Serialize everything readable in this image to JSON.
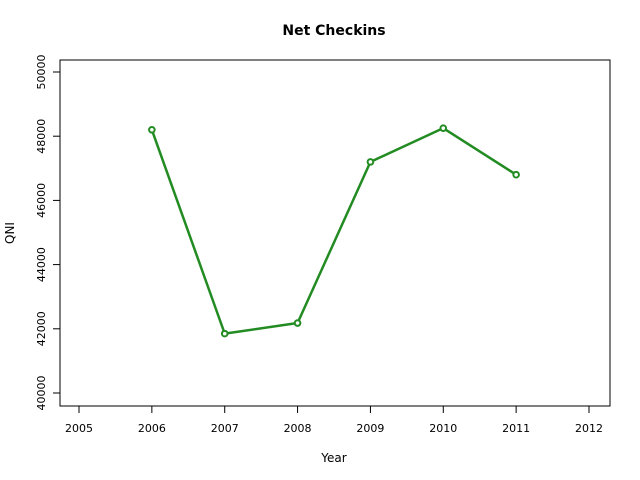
{
  "chart_data": {
    "type": "line",
    "title": "Net Checkins",
    "xlabel": "Year",
    "ylabel": "QNI",
    "xlim": [
      2005,
      2012
    ],
    "ylim": [
      40000,
      50000
    ],
    "x_ticks": [
      2005,
      2006,
      2007,
      2008,
      2009,
      2010,
      2011,
      2012
    ],
    "y_ticks": [
      40000,
      42000,
      44000,
      46000,
      48000,
      50000
    ],
    "grid": false,
    "series": [
      {
        "x": [
          2006,
          2007,
          2008,
          2009,
          2010,
          2011
        ],
        "values": [
          48200,
          41850,
          42180,
          47200,
          48250,
          46800
        ],
        "color": "#228B22",
        "marker": "open-circle"
      }
    ]
  }
}
